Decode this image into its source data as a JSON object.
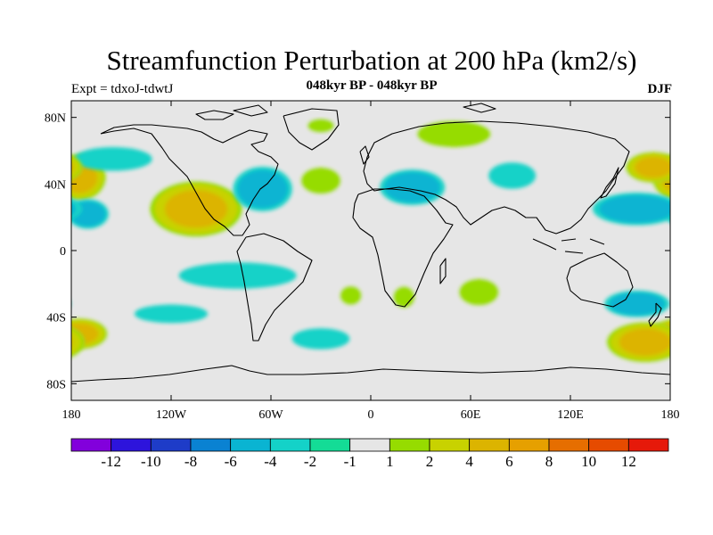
{
  "chart_data": {
    "type": "contour-map",
    "title": "Streamfunction Perturbation at 200 hPa (km2/s)",
    "subtitle": "048kyr BP - 048kyr BP",
    "left_label": "Expt = tdxoJ-tdwtJ",
    "right_label": "DJF",
    "xlim": [
      -180,
      180
    ],
    "ylim": [
      -90,
      90
    ],
    "x_ticks": [
      {
        "value": -180,
        "label": "180"
      },
      {
        "value": -120,
        "label": "120W"
      },
      {
        "value": -60,
        "label": "60W"
      },
      {
        "value": 0,
        "label": "0"
      },
      {
        "value": 60,
        "label": "60E"
      },
      {
        "value": 120,
        "label": "120E"
      },
      {
        "value": 180,
        "label": "180"
      }
    ],
    "y_ticks": [
      {
        "value": 80,
        "label": "80N"
      },
      {
        "value": 40,
        "label": "40N"
      },
      {
        "value": 0,
        "label": "0"
      },
      {
        "value": -40,
        "label": "40S"
      },
      {
        "value": -80,
        "label": "80S"
      }
    ],
    "colorbar": {
      "levels": [
        "-12",
        "-10",
        "-8",
        "-6",
        "-4",
        "-2",
        "-1",
        "1",
        "2",
        "4",
        "6",
        "8",
        "10",
        "12"
      ],
      "colors": [
        "#8200dc",
        "#2d14dc",
        "#1e3cc8",
        "#0a82d2",
        "#0ab4d2",
        "#14d2c8",
        "#14dc96",
        "#e6e6e6",
        "#96dc00",
        "#c8d200",
        "#dcb400",
        "#e6a000",
        "#e66e00",
        "#e64b00",
        "#e6190a"
      ]
    },
    "features": [
      {
        "name": "N Pacific subtropical positive",
        "lon": -175,
        "lat": 44,
        "rx": 17,
        "ry": 15,
        "value": 6
      },
      {
        "name": "N Pacific negative band",
        "lon": -155,
        "lat": 55,
        "rx": 30,
        "ry": 9,
        "value": -2
      },
      {
        "name": "E Pacific tropical negative",
        "lon": -170,
        "lat": 22,
        "rx": 14,
        "ry": 10,
        "value": -4
      },
      {
        "name": "E Pacific subtropical positive",
        "lon": -105,
        "lat": 25,
        "rx": 30,
        "ry": 18,
        "value": 6
      },
      {
        "name": "N America negative",
        "lon": -65,
        "lat": 37,
        "rx": 20,
        "ry": 15,
        "value": -4
      },
      {
        "name": "Greenland positive",
        "lon": -30,
        "lat": 75,
        "rx": 10,
        "ry": 5,
        "value": 2
      },
      {
        "name": "N Atlantic positive",
        "lon": -30,
        "lat": 42,
        "rx": 15,
        "ry": 10,
        "value": 2
      },
      {
        "name": "Mediterranean negative",
        "lon": 25,
        "lat": 38,
        "rx": 22,
        "ry": 12,
        "value": -4
      },
      {
        "name": "Siberia positive",
        "lon": 50,
        "lat": 70,
        "rx": 28,
        "ry": 10,
        "value": 2
      },
      {
        "name": "Central Asia negative",
        "lon": 85,
        "lat": 45,
        "rx": 18,
        "ry": 10,
        "value": -2
      },
      {
        "name": "W Pacific negative",
        "lon": 160,
        "lat": 25,
        "rx": 30,
        "ry": 11,
        "value": -4
      },
      {
        "name": "NW Pacific positive",
        "lon": 170,
        "lat": 50,
        "rx": 18,
        "ry": 10,
        "value": 6
      },
      {
        "name": "S Pacific negative",
        "lon": -80,
        "lat": -15,
        "rx": 45,
        "ry": 10,
        "value": -2
      },
      {
        "name": "S Pacific band negative",
        "lon": -120,
        "lat": -38,
        "rx": 28,
        "ry": 7,
        "value": -2
      },
      {
        "name": "S Pacific positive",
        "lon": -175,
        "lat": -50,
        "rx": 18,
        "ry": 10,
        "value": 6
      },
      {
        "name": "S Atlantic negative",
        "lon": -30,
        "lat": -53,
        "rx": 22,
        "ry": 8,
        "value": -2
      },
      {
        "name": "S Atlantic positive",
        "lon": -12,
        "lat": -27,
        "rx": 8,
        "ry": 7,
        "value": 2
      },
      {
        "name": "S Africa positive",
        "lon": 20,
        "lat": -28,
        "rx": 8,
        "ry": 8,
        "value": 2
      },
      {
        "name": "Indian Ocean positive",
        "lon": 65,
        "lat": -25,
        "rx": 15,
        "ry": 10,
        "value": 2
      },
      {
        "name": "Australia negative",
        "lon": 160,
        "lat": -32,
        "rx": 22,
        "ry": 9,
        "value": -4
      },
      {
        "name": "S Indian/Pacific positive",
        "lon": 165,
        "lat": -55,
        "rx": 25,
        "ry": 13,
        "value": 6
      }
    ]
  }
}
